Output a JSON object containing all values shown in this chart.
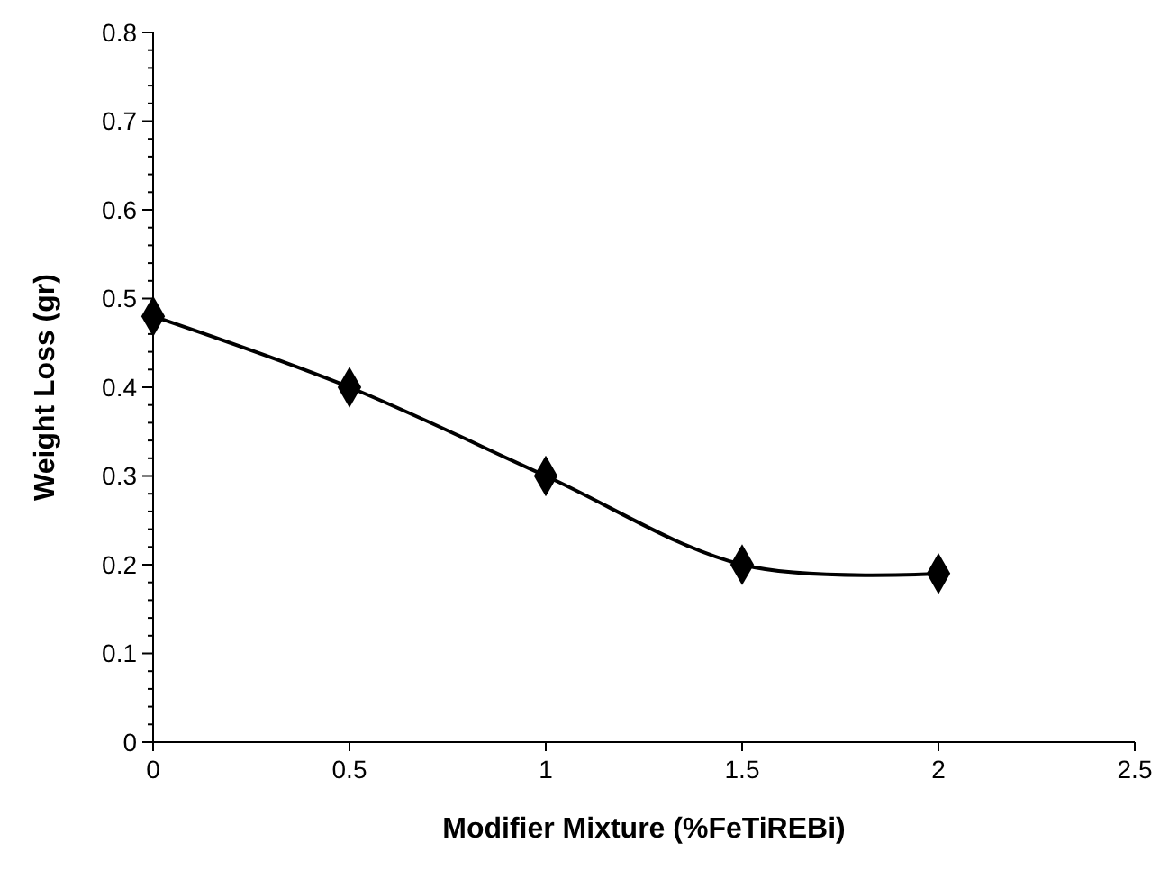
{
  "chart_data": {
    "type": "line",
    "xlabel": "Modifier Mixture (%FeTiREBi)",
    "ylabel": "Weight Loss (gr)",
    "x": [
      0,
      0.5,
      1,
      1.5,
      2
    ],
    "series": [
      {
        "color": "#000000",
        "values": [
          0.48,
          0.4,
          0.3,
          0.2,
          0.19
        ]
      }
    ],
    "marker": "diamond",
    "line_style": "solid",
    "grid": false,
    "xlim": [
      0,
      2.5
    ],
    "xticks": [
      0,
      0.5,
      1,
      1.5,
      2,
      2.5
    ],
    "ylim": [
      0,
      0.8
    ],
    "yticks": [
      0,
      {
        "value": 0.02,
        "label": null
      },
      {
        "value": 0.04,
        "label": null
      },
      {
        "value": 0.06,
        "label": null
      },
      {
        "value": 0.08,
        "label": null
      },
      0.1,
      {
        "value": 0.12,
        "label": null
      },
      {
        "value": 0.14,
        "label": null
      },
      {
        "value": 0.16,
        "label": null
      },
      {
        "value": 0.18,
        "label": null
      },
      0.2,
      {
        "value": 0.22,
        "label": null
      },
      {
        "value": 0.24,
        "label": null
      },
      {
        "value": 0.26,
        "label": null
      },
      {
        "value": 0.28,
        "label": null
      },
      0.3,
      {
        "value": 0.32,
        "label": null
      },
      {
        "value": 0.34,
        "label": null
      },
      {
        "value": 0.36,
        "label": null
      },
      {
        "value": 0.38,
        "label": null
      },
      0.4,
      {
        "value": 0.42,
        "label": null
      },
      {
        "value": 0.44,
        "label": null
      },
      {
        "value": 0.46,
        "label": null
      },
      {
        "value": 0.48,
        "label": null
      },
      0.5,
      {
        "value": 0.52,
        "label": null
      },
      {
        "value": 0.54,
        "label": null
      },
      {
        "value": 0.56,
        "label": null
      },
      {
        "value": 0.58,
        "label": null
      },
      0.6,
      {
        "value": 0.62,
        "label": null
      },
      {
        "value": 0.64,
        "label": null
      },
      {
        "value": 0.66,
        "label": null
      },
      {
        "value": 0.68,
        "label": null
      },
      0.7,
      {
        "value": 0.72,
        "label": null
      },
      {
        "value": 0.74,
        "label": null
      },
      {
        "value": 0.76,
        "label": null
      },
      {
        "value": 0.78,
        "label": null
      },
      0.8
    ]
  }
}
